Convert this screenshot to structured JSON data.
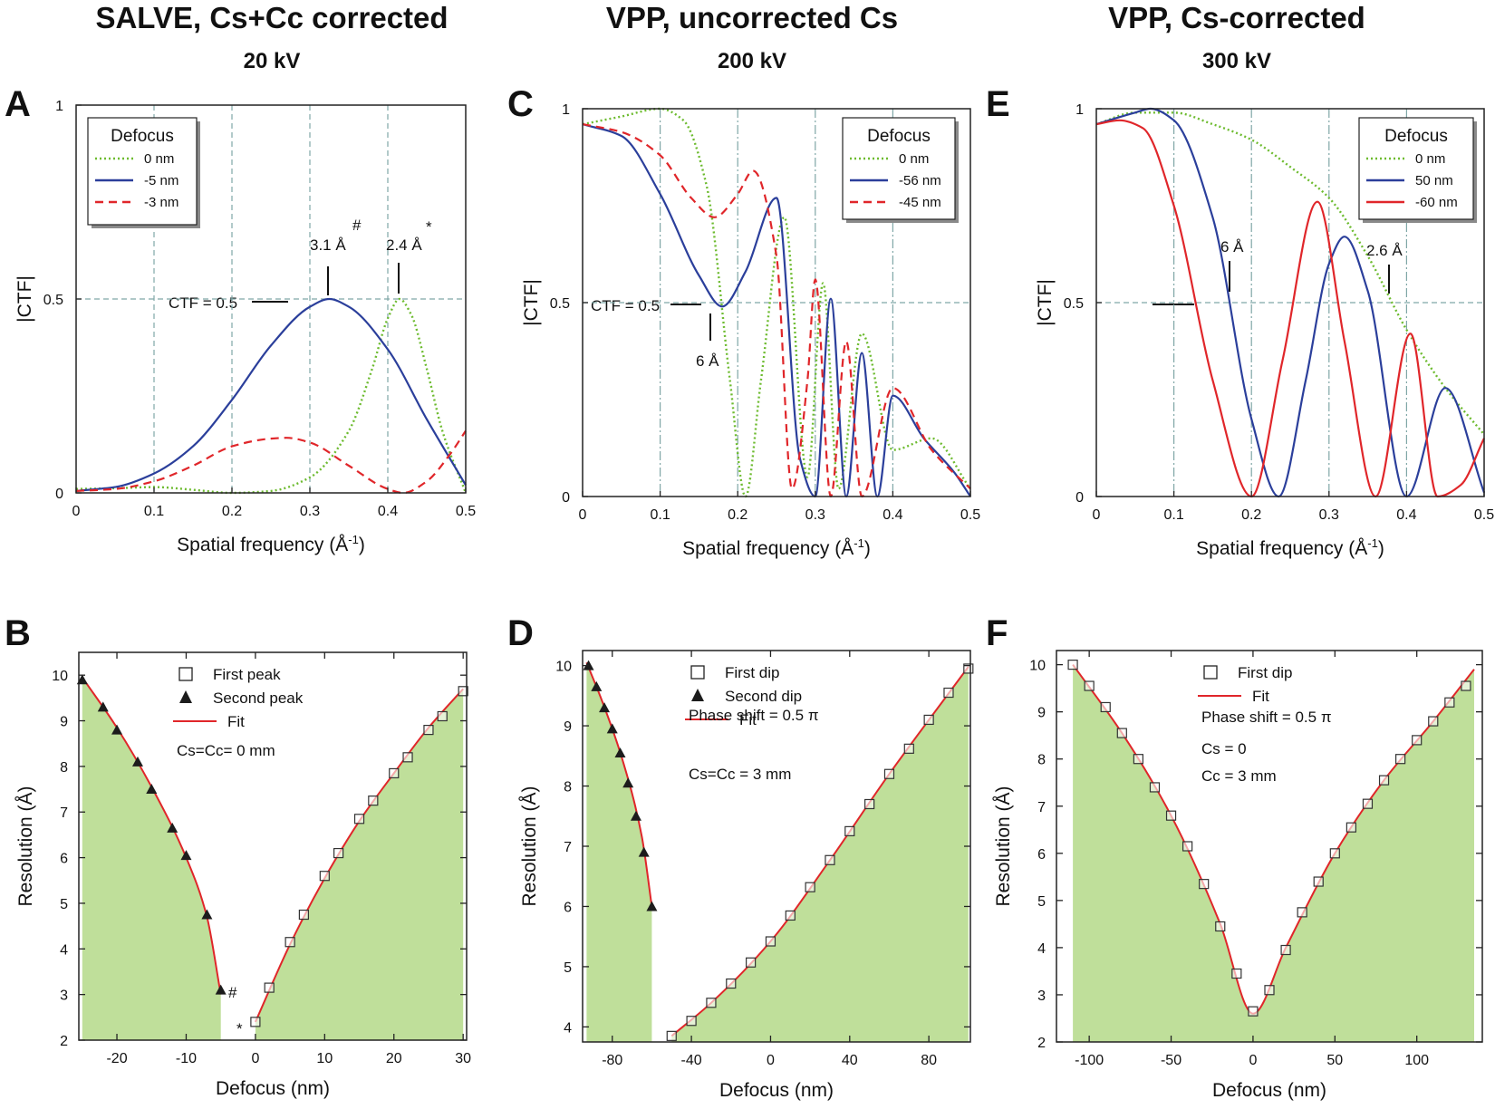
{
  "columns": [
    {
      "title": "SALVE, Cs+Cc corrected",
      "subtitle": "20 kV"
    },
    {
      "title": "VPP, uncorrected Cs",
      "subtitle": "200 kV"
    },
    {
      "title": "VPP, Cs-corrected",
      "subtitle": "300 kV"
    }
  ],
  "colors": {
    "green": "#6dbb2f",
    "blue": "#2b3f9b",
    "red": "#e0262a",
    "fill": "#bfdf9a",
    "grid": "#7fa6a6"
  },
  "chart_data": [
    {
      "panel": "A",
      "type": "line",
      "xlabel": "Spatial frequency (Å-1)",
      "ylabel": "|CTF|",
      "xlim": [
        0,
        0.5
      ],
      "ylim": [
        0,
        1
      ],
      "xticks": [
        "0",
        "0.1",
        "0.2",
        "0.3",
        "0.4",
        "0.5"
      ],
      "yticks": [
        "0",
        "0.5",
        "1"
      ],
      "legend": {
        "title": "Defocus",
        "position": "top-left"
      },
      "annotations": [
        "CTF = 0.5",
        "3.1 Å",
        "#",
        "2.4 Å",
        "*"
      ],
      "series": [
        {
          "name": "0 nm",
          "style": "dotted",
          "color": "green",
          "x": [
            0,
            0.05,
            0.1,
            0.15,
            0.2,
            0.25,
            0.3,
            0.35,
            0.38,
            0.4,
            0.415,
            0.43,
            0.45,
            0.47,
            0.5
          ],
          "y": [
            0.01,
            0.012,
            0.015,
            0.008,
            0,
            0.005,
            0.04,
            0.16,
            0.32,
            0.45,
            0.5,
            0.46,
            0.32,
            0.16,
            0
          ]
        },
        {
          "name": "-5 nm",
          "style": "solid",
          "color": "blue",
          "x": [
            0,
            0.05,
            0.1,
            0.15,
            0.2,
            0.25,
            0.3,
            0.325,
            0.35,
            0.4,
            0.45,
            0.5
          ],
          "y": [
            0.005,
            0.015,
            0.05,
            0.12,
            0.24,
            0.38,
            0.48,
            0.5,
            0.48,
            0.37,
            0.19,
            0.02
          ]
        },
        {
          "name": "-3 nm",
          "style": "dashed",
          "color": "red",
          "x": [
            0,
            0.05,
            0.1,
            0.15,
            0.2,
            0.25,
            0.27,
            0.3,
            0.35,
            0.4,
            0.42,
            0.45,
            0.48,
            0.5
          ],
          "y": [
            0.005,
            0.01,
            0.03,
            0.07,
            0.12,
            0.14,
            0.142,
            0.13,
            0.07,
            0.01,
            0.0,
            0.03,
            0.1,
            0.16
          ]
        }
      ]
    },
    {
      "panel": "C",
      "type": "line",
      "xlabel": "Spatial frequency (Å-1)",
      "ylabel": "|CTF|",
      "xlim": [
        0,
        0.5
      ],
      "ylim": [
        0,
        1
      ],
      "xticks": [
        "0",
        "0.1",
        "0.2",
        "0.3",
        "0.4",
        "0.5"
      ],
      "yticks": [
        "0",
        "0.5",
        "1"
      ],
      "legend": {
        "title": "Defocus",
        "position": "top-right"
      },
      "annotations": [
        "CTF = 0.5",
        "6 Å"
      ],
      "series": [
        {
          "name": "0 nm",
          "style": "dotted",
          "color": "green",
          "x": [
            0,
            0.05,
            0.1,
            0.13,
            0.16,
            0.19,
            0.21,
            0.23,
            0.26,
            0.29,
            0.31,
            0.33,
            0.36,
            0.4,
            0.45,
            0.5
          ],
          "y": [
            0.96,
            0.98,
            1.0,
            0.97,
            0.8,
            0.3,
            0.0,
            0.3,
            0.72,
            0.05,
            0.55,
            0.02,
            0.42,
            0.12,
            0.15,
            0.02
          ]
        },
        {
          "name": "-56 nm",
          "style": "solid",
          "color": "blue",
          "x": [
            0,
            0.05,
            0.1,
            0.15,
            0.18,
            0.21,
            0.25,
            0.28,
            0.3,
            0.32,
            0.34,
            0.36,
            0.38,
            0.4,
            0.44,
            0.48,
            0.5
          ],
          "y": [
            0.96,
            0.93,
            0.78,
            0.57,
            0.49,
            0.58,
            0.77,
            0.1,
            0.0,
            0.51,
            0.0,
            0.37,
            0.0,
            0.26,
            0.15,
            0.06,
            0.0
          ]
        },
        {
          "name": "-45 nm",
          "style": "dashed",
          "color": "red",
          "x": [
            0,
            0.05,
            0.1,
            0.14,
            0.17,
            0.2,
            0.22,
            0.25,
            0.27,
            0.29,
            0.3,
            0.32,
            0.34,
            0.36,
            0.4,
            0.45,
            0.5
          ],
          "y": [
            0.96,
            0.94,
            0.88,
            0.77,
            0.72,
            0.78,
            0.84,
            0.62,
            0.02,
            0.3,
            0.56,
            0.0,
            0.4,
            0.0,
            0.28,
            0.12,
            0.02
          ]
        }
      ]
    },
    {
      "panel": "E",
      "type": "line",
      "xlabel": "Spatial frequency (Å-1)",
      "ylabel": "|CTF|",
      "xlim": [
        0,
        0.5
      ],
      "ylim": [
        0,
        1
      ],
      "xticks": [
        "0",
        "0.1",
        "0.2",
        "0.3",
        "0.4",
        "0.5"
      ],
      "yticks": [
        "0",
        "0.5",
        "1"
      ],
      "legend": {
        "title": "Defocus",
        "position": "top-right"
      },
      "annotations": [
        "6 Å",
        "2.6 Å"
      ],
      "series": [
        {
          "name": "0 nm",
          "style": "dotted",
          "color": "green",
          "x": [
            0,
            0.05,
            0.1,
            0.15,
            0.2,
            0.25,
            0.3,
            0.35,
            0.4,
            0.45,
            0.5
          ],
          "y": [
            0.96,
            0.99,
            0.99,
            0.96,
            0.92,
            0.85,
            0.77,
            0.62,
            0.43,
            0.28,
            0.16
          ]
        },
        {
          "name": "50 nm",
          "style": "solid",
          "color": "blue",
          "x": [
            0,
            0.05,
            0.07,
            0.1,
            0.15,
            0.2,
            0.235,
            0.27,
            0.3,
            0.32,
            0.35,
            0.4,
            0.45,
            0.5
          ],
          "y": [
            0.96,
            0.99,
            1.0,
            0.97,
            0.72,
            0.2,
            0.0,
            0.3,
            0.6,
            0.67,
            0.53,
            0.0,
            0.28,
            0.01
          ]
        },
        {
          "name": "-60 nm",
          "style": "solid",
          "color": "red",
          "x": [
            0,
            0.03,
            0.06,
            0.1,
            0.15,
            0.2,
            0.24,
            0.285,
            0.32,
            0.36,
            0.405,
            0.44,
            0.47,
            0.5
          ],
          "y": [
            0.96,
            0.97,
            0.95,
            0.75,
            0.3,
            0.0,
            0.35,
            0.76,
            0.4,
            0.0,
            0.42,
            0.0,
            0.03,
            0.15
          ]
        }
      ]
    },
    {
      "panel": "B",
      "type": "scatter",
      "xlabel": "Defocus (nm)",
      "ylabel": "Resolution (Å)",
      "xlim": [
        -25.5,
        30.5
      ],
      "ylim": [
        2,
        10.5
      ],
      "xticks": [
        -20,
        -10,
        0,
        10,
        20,
        30
      ],
      "yticks": [
        2,
        3,
        4,
        5,
        6,
        7,
        8,
        9,
        10
      ],
      "legend": {
        "position": "top-center"
      },
      "notes": [
        "Cs=Cc= 0 mm"
      ],
      "annotations": [
        "#",
        "*"
      ],
      "series": [
        {
          "name": "First peak",
          "marker": "open-square",
          "x": [
            0,
            2,
            5,
            7,
            10,
            12,
            15,
            17,
            20,
            22,
            25,
            27,
            30
          ],
          "y": [
            2.4,
            3.15,
            4.15,
            4.75,
            5.6,
            6.1,
            6.85,
            7.25,
            7.85,
            8.2,
            8.8,
            9.1,
            9.65
          ]
        },
        {
          "name": "Second peak",
          "marker": "filled-triangle",
          "x": [
            -25,
            -22,
            -20,
            -17,
            -15,
            -12,
            -10,
            -7,
            -5
          ],
          "y": [
            9.9,
            9.3,
            8.8,
            8.1,
            7.5,
            6.65,
            6.05,
            4.75,
            3.1
          ]
        },
        {
          "name": "Fit",
          "style": "solid",
          "color": "red",
          "segments": [
            {
              "x": [
                -25,
                -20,
                -15,
                -10,
                -7,
                -5
              ],
              "y": [
                9.95,
                8.85,
                7.55,
                6.0,
                4.7,
                3.0
              ]
            },
            {
              "x": [
                0,
                5,
                10,
                15,
                20,
                25,
                30
              ],
              "y": [
                2.4,
                4.1,
                5.55,
                6.8,
                7.85,
                8.85,
                9.7
              ]
            }
          ]
        }
      ]
    },
    {
      "panel": "D",
      "type": "scatter",
      "xlabel": "Defocus (nm)",
      "ylabel": "Resolution (Å)",
      "xlim": [
        -95,
        101
      ],
      "ylim": [
        3.75,
        10.25
      ],
      "xticks": [
        -80,
        -40,
        0,
        40,
        80
      ],
      "yticks": [
        4,
        5,
        6,
        7,
        8,
        9,
        10
      ],
      "legend": {
        "position": "top-center"
      },
      "notes": [
        "Phase shift = 0.5 π",
        "Cs=Cc = 3 mm"
      ],
      "series": [
        {
          "name": "First dip",
          "marker": "open-square",
          "x": [
            -50,
            -40,
            -30,
            -20,
            -10,
            0,
            10,
            20,
            30,
            40,
            50,
            60,
            70,
            80,
            90,
            100
          ],
          "y": [
            3.85,
            4.1,
            4.4,
            4.72,
            5.07,
            5.42,
            5.85,
            6.32,
            6.77,
            7.25,
            7.7,
            8.2,
            8.62,
            9.1,
            9.55,
            9.95
          ]
        },
        {
          "name": "Second dip",
          "marker": "filled-triangle",
          "x": [
            -92,
            -88,
            -84,
            -80,
            -76,
            -72,
            -68,
            -64,
            -60
          ],
          "y": [
            10.0,
            9.65,
            9.3,
            8.95,
            8.55,
            8.05,
            7.5,
            6.9,
            6.0
          ]
        },
        {
          "name": "Fit",
          "style": "solid",
          "color": "red",
          "segments": [
            {
              "x": [
                -93,
                -85,
                -75,
                -65,
                -60
              ],
              "y": [
                10.05,
                9.4,
                8.45,
                7.15,
                6.0
              ]
            },
            {
              "x": [
                -50,
                -30,
                0,
                30,
                60,
                100
              ],
              "y": [
                3.85,
                4.4,
                5.42,
                6.77,
                8.2,
                9.98
              ]
            }
          ]
        }
      ]
    },
    {
      "panel": "F",
      "type": "scatter",
      "xlabel": "Defocus (nm)",
      "ylabel": "Resolution (Å)",
      "xlim": [
        -120,
        140
      ],
      "ylim": [
        2,
        10.3
      ],
      "xticks": [
        -100,
        -50,
        0,
        50,
        100
      ],
      "yticks": [
        2,
        3,
        4,
        5,
        6,
        7,
        8,
        9,
        10
      ],
      "legend": {
        "position": "top-center"
      },
      "notes": [
        "Phase shift = 0.5 π",
        "Cs = 0",
        "Cc = 3 mm"
      ],
      "series": [
        {
          "name": "First dip",
          "marker": "open-square",
          "x": [
            -110,
            -100,
            -90,
            -80,
            -70,
            -60,
            -50,
            -40,
            -30,
            -20,
            -10,
            0,
            10,
            20,
            30,
            40,
            50,
            60,
            70,
            80,
            90,
            100,
            110,
            120,
            130
          ],
          "y": [
            10.0,
            9.55,
            9.1,
            8.55,
            8.0,
            7.4,
            6.8,
            6.15,
            5.35,
            4.45,
            3.45,
            2.65,
            3.1,
            3.95,
            4.75,
            5.4,
            6.0,
            6.55,
            7.05,
            7.55,
            8.0,
            8.4,
            8.8,
            9.2,
            9.55
          ]
        },
        {
          "name": "Fit",
          "style": "solid",
          "color": "red",
          "segments": [
            {
              "x": [
                -110,
                -80,
                -50,
                -20,
                0,
                20,
                50,
                80,
                110,
                135
              ],
              "y": [
                10.0,
                8.55,
                6.8,
                4.5,
                2.6,
                4.0,
                6.0,
                7.55,
                8.8,
                9.9
              ]
            }
          ]
        }
      ]
    }
  ]
}
